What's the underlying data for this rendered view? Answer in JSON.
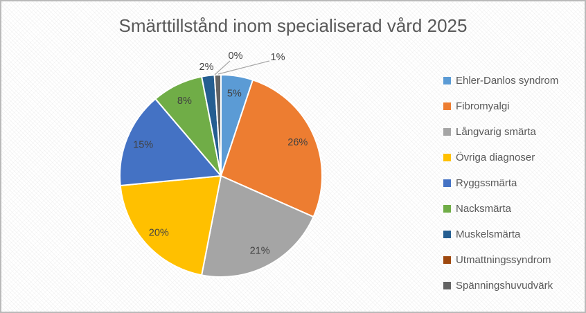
{
  "chart_data": {
    "type": "pie",
    "title": "Smärttillstånd inom specialiserad vård 2025",
    "legend_position": "right",
    "label_format": "percent",
    "title_color": "#595959",
    "label_color": "#404040",
    "leader_line_color": "#a6a6a6",
    "slice_border_color": "#ffffff",
    "series": [
      {
        "label": "Ehler-Danlos syndrom",
        "value": 5,
        "display": "5%",
        "color": "#5B9BD5"
      },
      {
        "label": "Fibromyalgi",
        "value": 26,
        "display": "26%",
        "color": "#ED7D31"
      },
      {
        "label": "Långvarig smärta",
        "value": 21,
        "display": "21%",
        "color": "#A5A5A5"
      },
      {
        "label": "Övriga diagnoser",
        "value": 20,
        "display": "20%",
        "color": "#FFC000"
      },
      {
        "label": "Ryggssmärta",
        "value": 15,
        "display": "15%",
        "color": "#4472C4"
      },
      {
        "label": "Nacksmärta",
        "value": 8,
        "display": "8%",
        "color": "#70AD47"
      },
      {
        "label": "Muskelsmärta",
        "value": 2,
        "display": "2%",
        "color": "#255E91"
      },
      {
        "label": "Utmattningssyndrom",
        "value": 0,
        "display": "0%",
        "color": "#9E480E"
      },
      {
        "label": "Spänningshuvudvärk",
        "value": 1,
        "display": "1%",
        "color": "#636363"
      }
    ]
  }
}
